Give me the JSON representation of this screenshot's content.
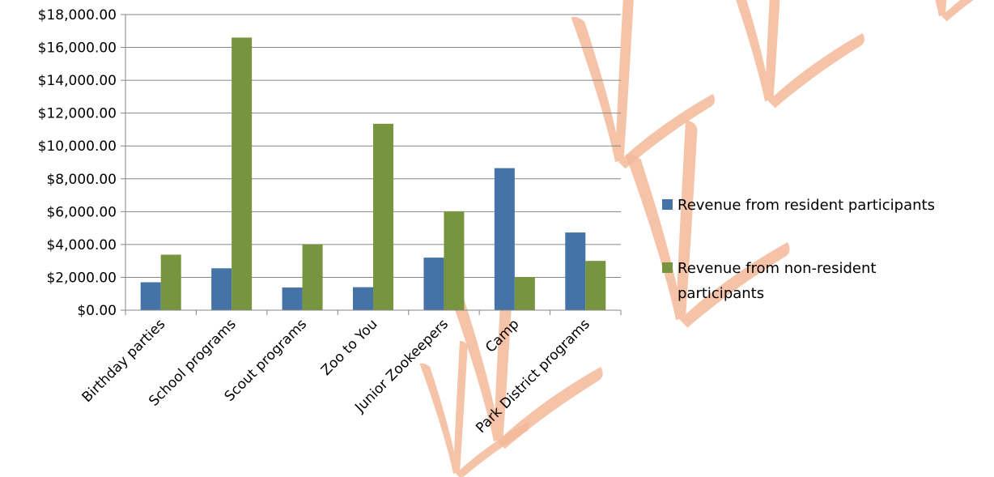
{
  "chart_data": {
    "type": "bar",
    "title": "",
    "xlabel": "",
    "ylabel": "",
    "categories": [
      "Birthday parties",
      "School programs",
      "Scout programs",
      "Zoo to You",
      "Junior Zookeepers",
      "Camp",
      "Park District programs"
    ],
    "series": [
      {
        "name": "Revenue from resident participants",
        "color": "#4572a7",
        "values": [
          1700,
          2550,
          1380,
          1400,
          3200,
          8650,
          4730
        ]
      },
      {
        "name": "Revenue from non-resident participants",
        "color": "#77953e",
        "values": [
          3380,
          16600,
          4000,
          11350,
          6020,
          2020,
          3000
        ]
      }
    ],
    "y_ticks": [
      "$0.00",
      "$2,000.00",
      "$4,000.00",
      "$6,000.00",
      "$8,000.00",
      "$10,000.00",
      "$12,000.00",
      "$14,000.00",
      "$16,000.00",
      "$18,000.00"
    ],
    "ylim": [
      0,
      18000
    ],
    "grid": true,
    "legend_position": "right",
    "watermark": {
      "description": "bird footprint tracks",
      "color": "#f4b99a"
    }
  }
}
